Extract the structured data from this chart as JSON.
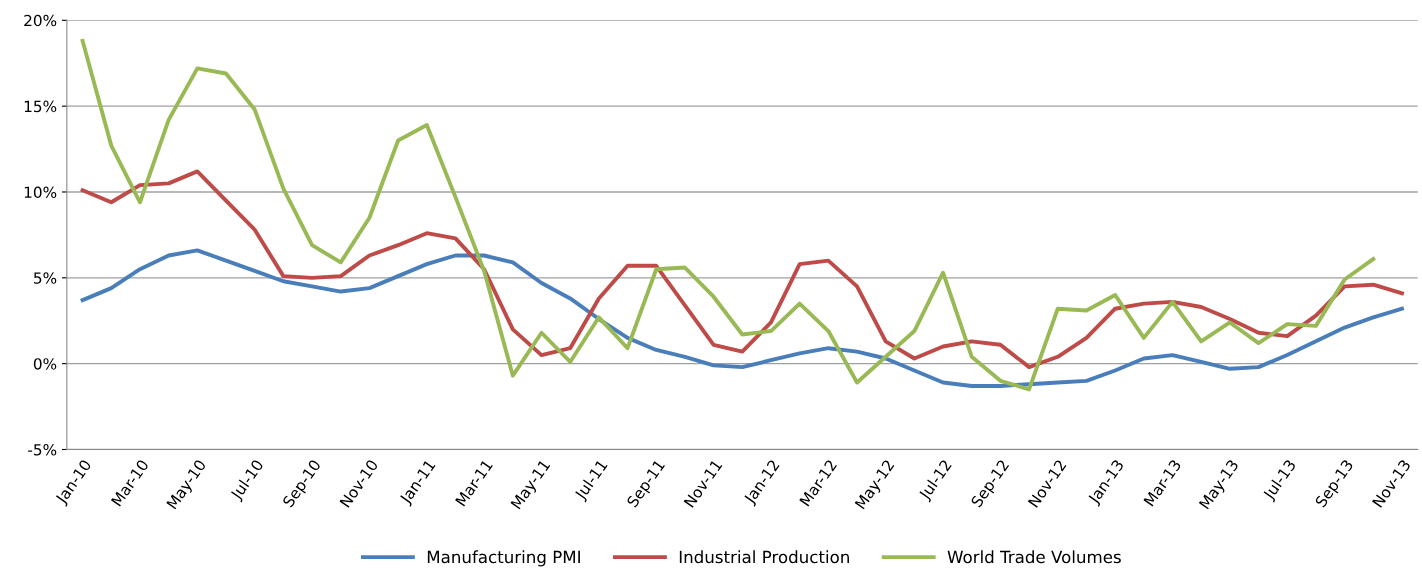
{
  "chart_data": {
    "type": "line",
    "categories": [
      "Jan-10",
      null,
      "Mar-10",
      null,
      "May-10",
      null,
      "Jul-10",
      null,
      "Sep-10",
      null,
      "Nov-10",
      null,
      "Jan-11",
      null,
      "Mar-11",
      null,
      "May-11",
      null,
      "Jul-11",
      null,
      "Sep-11",
      null,
      "Nov-11",
      null,
      "Jan-12",
      null,
      "Mar-12",
      null,
      "May-12",
      null,
      "Jul-12",
      null,
      "Sep-12",
      null,
      "Nov-12",
      null,
      "Jan-13",
      null,
      "Mar-13",
      null,
      "May-13",
      null,
      "Jul-13",
      null,
      "Sep-13",
      null,
      "Nov-13"
    ],
    "series": [
      {
        "name": "Manufacturing PMI",
        "color": "#4a7ebb",
        "values": [
          3.7,
          4.4,
          5.5,
          6.3,
          6.6,
          6.0,
          5.4,
          4.8,
          4.5,
          4.2,
          4.4,
          5.1,
          5.8,
          6.3,
          6.3,
          5.9,
          4.7,
          3.8,
          2.6,
          1.5,
          0.8,
          0.4,
          -0.1,
          -0.2,
          0.2,
          0.6,
          0.9,
          0.7,
          0.3,
          -0.4,
          -1.1,
          -1.3,
          -1.3,
          -1.2,
          -1.1,
          -1.0,
          -0.4,
          0.3,
          0.5,
          0.1,
          -0.3,
          -0.2,
          0.5,
          1.3,
          2.1,
          2.7,
          3.2
        ]
      },
      {
        "name": "Industrial Production",
        "color": "#be4b48",
        "values": [
          10.1,
          9.4,
          10.4,
          10.5,
          11.2,
          9.5,
          7.8,
          5.1,
          5.0,
          5.1,
          6.3,
          6.9,
          7.6,
          7.3,
          5.5,
          2.0,
          0.5,
          0.9,
          3.8,
          5.7,
          5.7,
          3.4,
          1.1,
          0.7,
          2.4,
          5.8,
          6.0,
          4.5,
          1.3,
          0.3,
          1.0,
          1.3,
          1.1,
          -0.2,
          0.4,
          1.5,
          3.2,
          3.5,
          3.6,
          3.3,
          2.6,
          1.8,
          1.6,
          2.8,
          4.5,
          4.6,
          4.1
        ]
      },
      {
        "name": "World Trade Volumes",
        "color": "#98b954",
        "values": [
          18.8,
          12.7,
          9.4,
          14.2,
          17.2,
          16.9,
          14.8,
          10.2,
          6.9,
          5.9,
          8.5,
          13.0,
          13.9,
          9.7,
          5.4,
          -0.7,
          1.8,
          0.1,
          2.7,
          0.9,
          5.5,
          5.6,
          3.9,
          1.7,
          1.9,
          3.5,
          1.9,
          -1.1,
          0.4,
          1.9,
          5.3,
          0.4,
          -1.0,
          -1.5,
          3.2,
          3.1,
          4.0,
          1.5,
          3.6,
          1.3,
          2.4,
          1.2,
          2.3,
          2.2,
          4.9,
          6.1,
          null
        ]
      }
    ],
    "ylim": [
      -5,
      20
    ],
    "yticks": [
      {
        "value": -5,
        "label": "-5%"
      },
      {
        "value": 0,
        "label": "0%"
      },
      {
        "value": 5,
        "label": "5%"
      },
      {
        "value": 10,
        "label": "10%"
      },
      {
        "value": 15,
        "label": "15%"
      },
      {
        "value": 20,
        "label": "20%"
      }
    ],
    "grid": "y",
    "legend": "bottom",
    "marker": "none",
    "line_style": "solid"
  }
}
